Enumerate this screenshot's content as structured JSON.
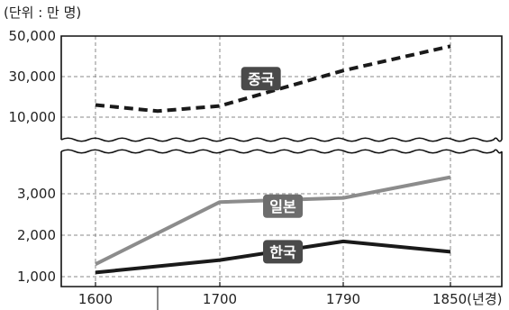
{
  "chart_data": {
    "type": "line",
    "unit_label": "(단위 : 만 명)",
    "x": [
      1600,
      1700,
      1790,
      1850
    ],
    "x_tick_labels": [
      "1600",
      "1700",
      "1790",
      "1850(년경)"
    ],
    "axis_break": true,
    "upper_panel": {
      "ylim": [
        0,
        50000
      ],
      "yticks": [
        10000,
        30000,
        50000
      ],
      "ytick_labels": [
        "10,000",
        "30,000",
        "50,000"
      ]
    },
    "lower_panel": {
      "ylim": [
        800,
        3800
      ],
      "yticks": [
        1000,
        2000,
        3000
      ],
      "ytick_labels": [
        "1,000",
        "2,000",
        "3,000"
      ]
    },
    "series": [
      {
        "name": "중국",
        "panel": "upper",
        "style": "dashed",
        "color": "#1a1a1a",
        "points": [
          [
            1600,
            16000
          ],
          [
            1650,
            13000
          ],
          [
            1700,
            15500
          ],
          [
            1790,
            33000
          ],
          [
            1850,
            45000
          ]
        ],
        "label_at": [
          1730,
          29000
        ]
      },
      {
        "name": "일본",
        "panel": "lower",
        "style": "solid",
        "color": "#8c8c8c",
        "points": [
          [
            1600,
            1300
          ],
          [
            1700,
            2800
          ],
          [
            1790,
            2900
          ],
          [
            1850,
            3400
          ]
        ],
        "label_at": [
          1746,
          2700
        ]
      },
      {
        "name": "한국",
        "panel": "lower",
        "style": "solid",
        "color": "#1a1a1a",
        "points": [
          [
            1600,
            1100
          ],
          [
            1700,
            1400
          ],
          [
            1790,
            1850
          ],
          [
            1850,
            1600
          ]
        ],
        "label_at": [
          1746,
          1600
        ]
      }
    ],
    "grid": true
  }
}
